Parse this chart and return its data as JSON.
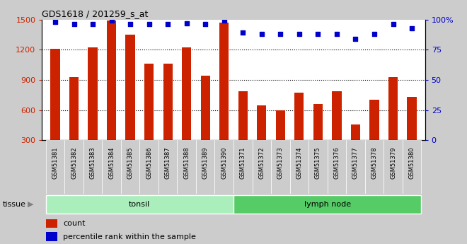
{
  "title": "GDS1618 / 201259_s_at",
  "categories": [
    "GSM51381",
    "GSM51382",
    "GSM51383",
    "GSM51384",
    "GSM51385",
    "GSM51386",
    "GSM51387",
    "GSM51388",
    "GSM51389",
    "GSM51390",
    "GSM51371",
    "GSM51372",
    "GSM51373",
    "GSM51374",
    "GSM51375",
    "GSM51376",
    "GSM51377",
    "GSM51378",
    "GSM51379",
    "GSM51380"
  ],
  "bar_values": [
    1210,
    930,
    1220,
    1490,
    1350,
    1060,
    1060,
    1220,
    940,
    1470,
    790,
    650,
    595,
    775,
    660,
    790,
    460,
    705,
    930,
    730
  ],
  "percentile_values": [
    98,
    96,
    96,
    99,
    96,
    96,
    96,
    97,
    96,
    99,
    89,
    88,
    88,
    88,
    88,
    88,
    84,
    88,
    96,
    93
  ],
  "bar_color": "#cc2200",
  "dot_color": "#0000cc",
  "ylim_left": [
    300,
    1500
  ],
  "ylim_right": [
    0,
    100
  ],
  "yticks_left": [
    300,
    600,
    900,
    1200,
    1500
  ],
  "yticks_right": [
    0,
    25,
    50,
    75,
    100
  ],
  "yright_labels": [
    "0",
    "25",
    "50",
    "75",
    "100%"
  ],
  "grid_values": [
    600,
    900,
    1200
  ],
  "tissue_groups": [
    {
      "label": "tonsil",
      "start": 0,
      "end": 10,
      "color": "#aaeebb"
    },
    {
      "label": "lymph node",
      "start": 10,
      "end": 20,
      "color": "#55cc66"
    }
  ],
  "tissue_label": "tissue",
  "legend_count_label": "count",
  "legend_pct_label": "percentile rank within the sample",
  "bar_width": 0.5,
  "background_color": "#cccccc",
  "plot_bg_color": "#ffffff"
}
